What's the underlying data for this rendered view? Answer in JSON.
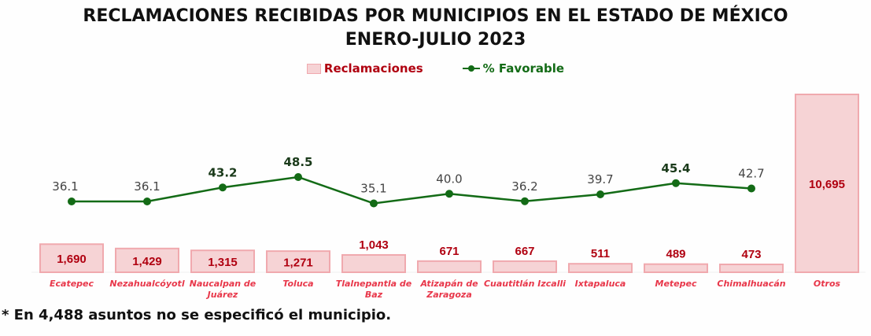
{
  "chart_data": {
    "type": "bar+line",
    "title": "RECLAMACIONES RECIBIDAS POR MUNICIPIOS EN EL ESTADO DE MÉXICO",
    "subtitle": "ENERO-JULIO 2023",
    "categories": [
      "Ecatepec",
      "Nezahualcóyotl",
      "Naucalpan de Juárez",
      "Toluca",
      "Tlalnepantla de Baz",
      "Atizapán de Zaragoza",
      "Cuautitlán Izcalli",
      "Ixtapaluca",
      "Metepec",
      "Chimalhuacán",
      "Otros"
    ],
    "series": [
      {
        "name": "Reclamaciones",
        "type": "bar",
        "values": [
          1690,
          1429,
          1315,
          1271,
          1043,
          671,
          667,
          511,
          489,
          473,
          10695
        ],
        "labels": [
          "1,690",
          "1,429",
          "1,315",
          "1,271",
          "1,043",
          "671",
          "667",
          "511",
          "489",
          "473",
          "10,695"
        ]
      },
      {
        "name": "% Favorable",
        "type": "line",
        "values": [
          36.1,
          36.1,
          43.2,
          48.5,
          35.1,
          40.0,
          36.2,
          39.7,
          45.4,
          42.7,
          null
        ],
        "labels": [
          "36.1",
          "36.1",
          "43.2",
          "48.5",
          "35.1",
          "40.0",
          "36.2",
          "39.7",
          "45.4",
          "42.7",
          ""
        ],
        "bold": [
          false,
          false,
          true,
          true,
          false,
          false,
          false,
          false,
          true,
          false,
          false
        ]
      }
    ],
    "legend": [
      "Reclamaciones",
      "% Favorable"
    ],
    "legend_position": "top",
    "colors": {
      "bar": "#f6d3d5",
      "bar_border": "#f0a9ae",
      "bar_label": "#b00010",
      "category": "#e8374a",
      "line": "#136b16"
    },
    "note": "* En 4,488 asuntos no se especificó el municipio."
  }
}
